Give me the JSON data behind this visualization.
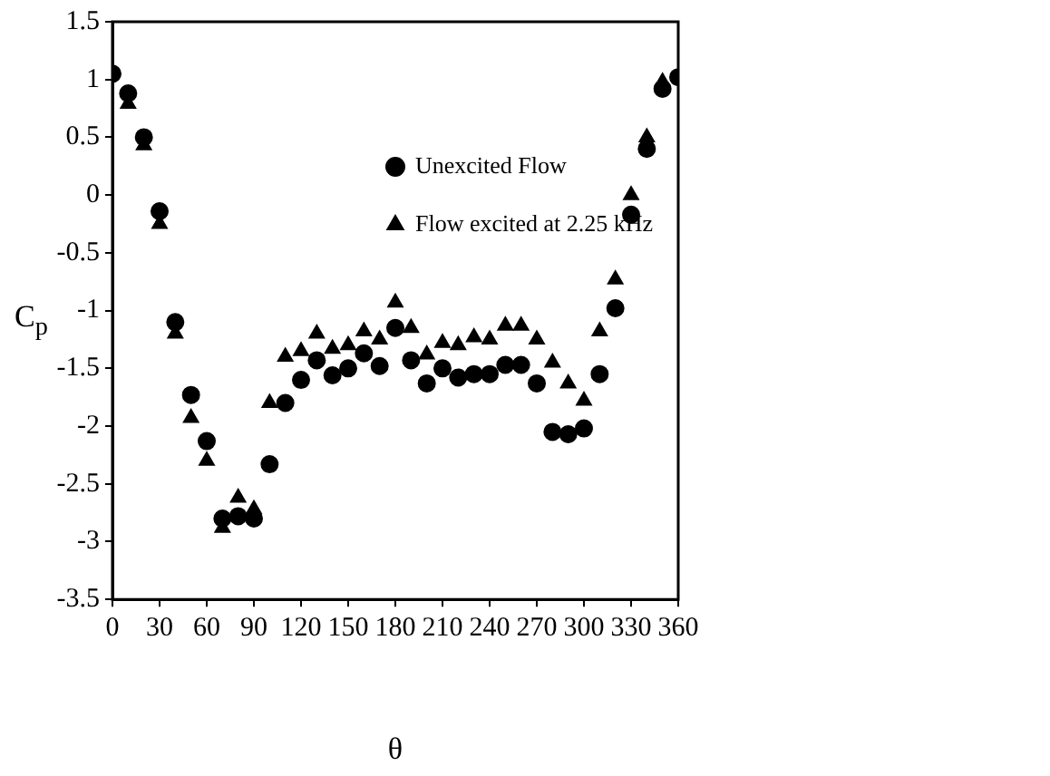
{
  "chart_data": {
    "type": "scatter",
    "xlabel": "θ",
    "ylabel": "C$_{p}$",
    "x": [
      0,
      10,
      20,
      30,
      40,
      50,
      60,
      70,
      80,
      90,
      100,
      110,
      120,
      130,
      140,
      150,
      160,
      170,
      180,
      190,
      200,
      210,
      220,
      230,
      240,
      250,
      260,
      270,
      280,
      290,
      300,
      310,
      320,
      330,
      340,
      350,
      360
    ],
    "series": [
      {
        "name": "Unexcited Flow",
        "color": "#000000",
        "marker": "circle",
        "values": [
          1.05,
          0.88,
          0.5,
          -0.14,
          -1.1,
          -1.73,
          -2.13,
          -2.8,
          -2.78,
          -2.8,
          -2.33,
          -1.8,
          -1.6,
          -1.43,
          -1.56,
          -1.5,
          -1.37,
          -1.48,
          -1.15,
          -1.43,
          -1.63,
          -1.5,
          -1.58,
          -1.55,
          -1.55,
          -1.47,
          -1.47,
          -1.63,
          -2.05,
          -2.07,
          -2.02,
          -1.55,
          -0.98,
          -0.17,
          0.4,
          0.92,
          1.02
        ]
      },
      {
        "name": "Flow excited at 2.25 kHz",
        "color": "#000000",
        "marker": "triangle",
        "values": [
          null,
          0.79,
          0.43,
          -0.25,
          -1.2,
          -1.93,
          -2.3,
          -2.88,
          -2.62,
          -2.72,
          -1.8,
          -1.4,
          -1.35,
          -1.2,
          -1.33,
          -1.3,
          -1.18,
          -1.25,
          -0.93,
          -1.15,
          -1.38,
          -1.28,
          -1.3,
          -1.23,
          -1.25,
          -1.13,
          -1.13,
          -1.25,
          -1.45,
          -1.63,
          -1.78,
          -1.18,
          -0.73,
          0.0,
          0.5,
          0.98,
          null
        ]
      }
    ],
    "xlim": [
      0,
      360
    ],
    "xticks": [
      0,
      30,
      60,
      90,
      120,
      150,
      180,
      210,
      240,
      270,
      300,
      330,
      360
    ],
    "ylim": [
      -3.5,
      1.5
    ],
    "yticks": [
      -3.5,
      -3,
      -2.5,
      -2,
      -1.5,
      -1,
      -0.5,
      0,
      0.5,
      1,
      1.5
    ],
    "grid": false,
    "legend": "top"
  }
}
